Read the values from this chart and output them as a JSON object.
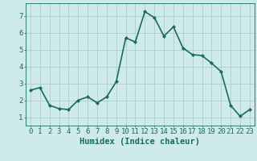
{
  "x": [
    0,
    1,
    2,
    3,
    4,
    5,
    6,
    7,
    8,
    9,
    10,
    11,
    12,
    13,
    14,
    15,
    16,
    17,
    18,
    19,
    20,
    21,
    22,
    23
  ],
  "y": [
    2.6,
    2.75,
    1.7,
    1.5,
    1.45,
    2.0,
    2.2,
    1.85,
    2.2,
    3.1,
    5.7,
    5.45,
    7.25,
    6.9,
    5.8,
    6.35,
    5.1,
    4.7,
    4.65,
    4.2,
    3.7,
    1.7,
    1.05,
    1.45
  ],
  "line_color": "#1a6b5a",
  "marker": "D",
  "marker_size": 2.0,
  "bg_color": "#ceeaea",
  "grid_color": "#b0cccc",
  "xlabel": "Humidex (Indice chaleur)",
  "ylim": [
    0.5,
    7.75
  ],
  "xlim": [
    -0.5,
    23.5
  ],
  "yticks": [
    1,
    2,
    3,
    4,
    5,
    6,
    7
  ],
  "xticks": [
    0,
    1,
    2,
    3,
    4,
    5,
    6,
    7,
    8,
    9,
    10,
    11,
    12,
    13,
    14,
    15,
    16,
    17,
    18,
    19,
    20,
    21,
    22,
    23
  ],
  "xtick_labels": [
    "0",
    "1",
    "2",
    "3",
    "4",
    "5",
    "6",
    "7",
    "8",
    "9",
    "10",
    "11",
    "12",
    "13",
    "14",
    "15",
    "16",
    "17",
    "18",
    "19",
    "20",
    "21",
    "22",
    "23"
  ],
  "font_color": "#1a6b5a",
  "tick_font_size": 6.5,
  "label_font_size": 7.5,
  "line_width": 1.2
}
